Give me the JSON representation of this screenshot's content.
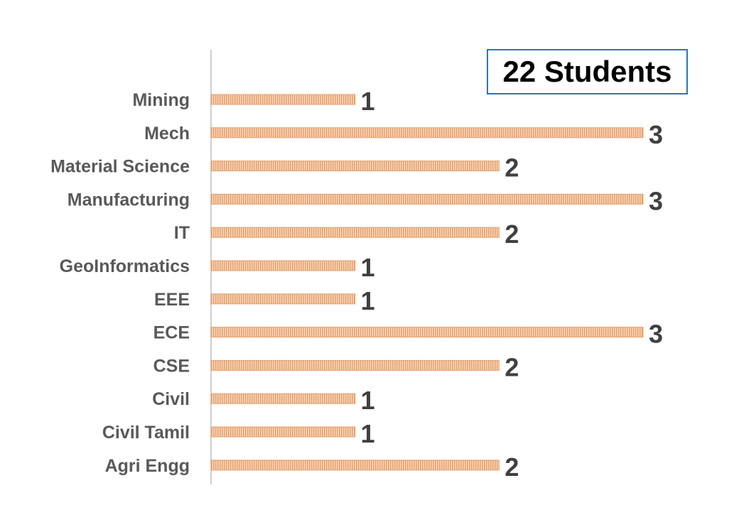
{
  "chart_data": {
    "type": "bar",
    "orientation": "horizontal",
    "title": "22 Students",
    "categories": [
      "Mining",
      "Mech",
      "Material Science",
      "Manufacturing",
      "IT",
      "GeoInformatics",
      "EEE",
      "ECE",
      "CSE",
      "Civil",
      "Civil Tamil",
      "Agri Engg"
    ],
    "values": [
      1,
      3,
      2,
      3,
      2,
      1,
      1,
      3,
      2,
      1,
      1,
      2
    ],
    "xlim": [
      0,
      3
    ],
    "grid": false,
    "data_labels": true,
    "colors": {
      "bar": "#e6a06c",
      "bar_stripe": "#f8ddc6",
      "axis": "#bfbfbf",
      "title_border": "#2e75b6"
    }
  }
}
